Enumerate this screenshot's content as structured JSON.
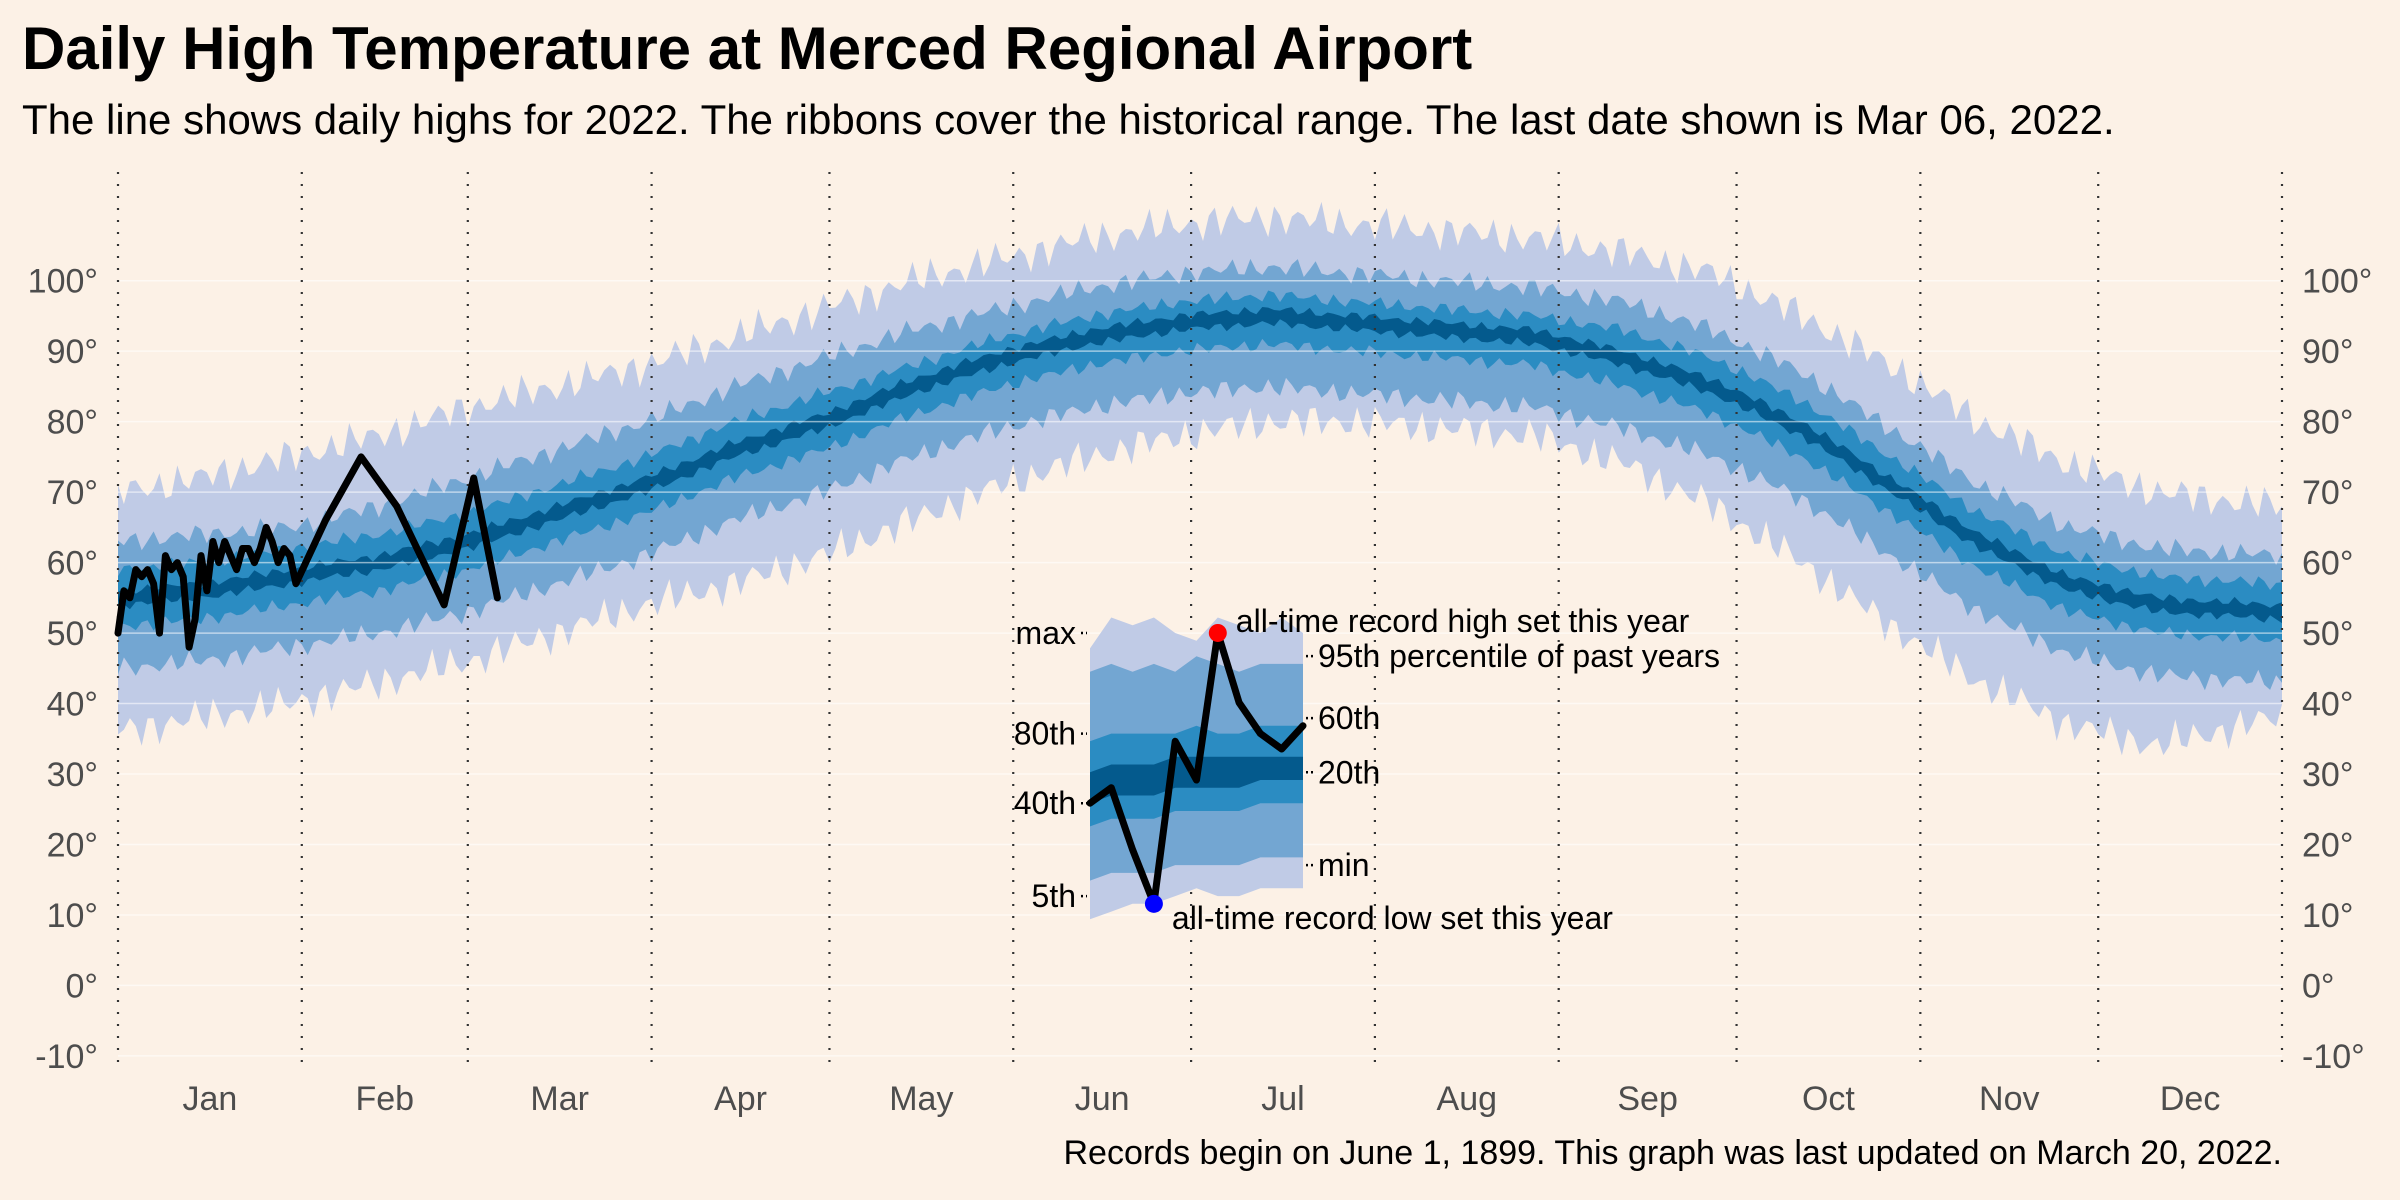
{
  "title": "Daily High Temperature at Merced Regional Airport",
  "subtitle": "The line shows daily highs for 2022. The ribbons cover the historical range. The last date shown is Mar 06, 2022.",
  "caption": "Records begin on June 1, 1899. This graph was last updated on March 20, 2022.",
  "colors": {
    "background": "#fcf1e6",
    "band_outer": "#c0cbe6",
    "band_5_95": "#73a6d2",
    "band_20_80": "#2b8cc2",
    "band_40_60": "#045a8d",
    "line": "#000000",
    "record_high": "#ff0000",
    "record_low": "#0000ff",
    "gridline": "#ffffff"
  },
  "chart_data": {
    "type": "area",
    "x_unit": "day of year",
    "y_unit": "°F",
    "ylim": [
      -12,
      115
    ],
    "y_ticks": [
      -10,
      0,
      10,
      20,
      30,
      40,
      50,
      60,
      70,
      80,
      90,
      100
    ],
    "y_tick_labels": [
      "-10°",
      "0°",
      "10°",
      "20°",
      "30°",
      "40°",
      "50°",
      "60°",
      "70°",
      "80°",
      "90°",
      "100°"
    ],
    "x_tick_labels": [
      "Jan",
      "Feb",
      "Mar",
      "Apr",
      "May",
      "Jun",
      "Jul",
      "Aug",
      "Sep",
      "Oct",
      "Nov",
      "Dec"
    ],
    "month_start_days": [
      1,
      32,
      60,
      91,
      121,
      152,
      182,
      213,
      244,
      274,
      305,
      335,
      366
    ],
    "grid": true,
    "climatology": {
      "day": [
        1,
        15,
        30,
        45,
        60,
        75,
        90,
        105,
        120,
        135,
        150,
        165,
        180,
        195,
        210,
        225,
        240,
        255,
        270,
        285,
        300,
        315,
        330,
        345,
        365
      ],
      "max": [
        70,
        72,
        75,
        78,
        82,
        85,
        88,
        92,
        96,
        100,
        103,
        106,
        108,
        109,
        108,
        107,
        106,
        104,
        101,
        95,
        88,
        80,
        74,
        70,
        68
      ],
      "p95": [
        63,
        64,
        65,
        68,
        72,
        76,
        80,
        85,
        89,
        93,
        96,
        99,
        101,
        102,
        101,
        100,
        99,
        97,
        93,
        87,
        79,
        71,
        65,
        62,
        61
      ],
      "p80": [
        59,
        60,
        62,
        64,
        67,
        71,
        75,
        80,
        84,
        88,
        92,
        95,
        97,
        98,
        97,
        96,
        95,
        93,
        89,
        83,
        75,
        67,
        61,
        58,
        57
      ],
      "p60": [
        56,
        57,
        59,
        61,
        64,
        68,
        72,
        77,
        81,
        86,
        90,
        93,
        95,
        96,
        95,
        94,
        93,
        90,
        86,
        80,
        72,
        64,
        58,
        55,
        54
      ],
      "p40": [
        54,
        55,
        57,
        59,
        62,
        66,
        70,
        75,
        79,
        84,
        88,
        91,
        93,
        94,
        93,
        92,
        91,
        88,
        84,
        78,
        70,
        62,
        56,
        53,
        52
      ],
      "p20": [
        51,
        52,
        54,
        56,
        59,
        63,
        67,
        72,
        76,
        81,
        85,
        88,
        90,
        91,
        90,
        89,
        88,
        85,
        81,
        75,
        67,
        59,
        53,
        50,
        49
      ],
      "p5": [
        45,
        46,
        48,
        50,
        53,
        57,
        61,
        66,
        70,
        75,
        79,
        82,
        84,
        85,
        84,
        83,
        82,
        79,
        75,
        69,
        61,
        53,
        47,
        44,
        43
      ],
      "min": [
        36,
        38,
        40,
        43,
        46,
        50,
        54,
        57,
        61,
        66,
        71,
        75,
        78,
        80,
        80,
        79,
        78,
        74,
        68,
        60,
        51,
        43,
        37,
        34,
        38
      ]
    },
    "series": [
      {
        "name": "2022",
        "x": [
          1,
          2,
          3,
          4,
          5,
          6,
          7,
          8,
          9,
          10,
          11,
          12,
          13,
          14,
          15,
          16,
          17,
          18,
          19,
          20,
          21,
          22,
          23,
          24,
          25,
          26,
          27,
          28,
          29,
          30,
          31,
          36,
          42,
          48,
          56,
          61,
          65
        ],
        "y": [
          50,
          56,
          55,
          59,
          58,
          59,
          57,
          50,
          61,
          59,
          60,
          58,
          48,
          52,
          61,
          56,
          63,
          60,
          63,
          61,
          59,
          62,
          62,
          60,
          62,
          65,
          63,
          60,
          62,
          61,
          57,
          66,
          75,
          68,
          54,
          72,
          55
        ]
      }
    ],
    "legend": {
      "labels_left": [
        {
          "text": "max",
          "value": 110
        },
        {
          "text": "80th",
          "value": 97
        },
        {
          "text": "40th",
          "value": 88
        },
        {
          "text": "5th",
          "value": 76
        }
      ],
      "labels_right": [
        {
          "text": "95th percentile of past years",
          "value": 107
        },
        {
          "text": "60th",
          "value": 99
        },
        {
          "text": "20th",
          "value": 92
        },
        {
          "text": "min",
          "value": 80
        }
      ],
      "record_high_label": "all-time record high set this year",
      "record_low_label": "all-time record low set this year",
      "clim": {
        "day": [
          1,
          2,
          3,
          4,
          5,
          6,
          7,
          8,
          9,
          10,
          11
        ],
        "max": [
          108,
          112,
          111,
          112,
          110,
          109,
          112,
          111,
          110,
          112,
          110
        ],
        "p95": [
          105,
          106,
          105,
          106,
          105,
          107,
          106,
          105,
          106,
          106,
          106
        ],
        "p80": [
          96,
          97,
          97,
          97,
          97,
          98,
          97,
          97,
          98,
          98,
          98
        ],
        "p60": [
          92,
          93,
          93,
          93,
          94,
          94,
          94,
          94,
          94,
          94,
          94
        ],
        "p40": [
          88,
          89,
          89,
          89,
          90,
          90,
          90,
          90,
          91,
          91,
          91
        ],
        "p20": [
          85,
          86,
          86,
          86,
          87,
          87,
          87,
          87,
          88,
          88,
          88
        ],
        "p5": [
          78,
          79,
          79,
          79,
          80,
          80,
          80,
          80,
          81,
          81,
          81
        ],
        "min": [
          73,
          74,
          75,
          75,
          76,
          77,
          76,
          76,
          77,
          77,
          77
        ]
      },
      "line": {
        "day": [
          1,
          2,
          3,
          4,
          5,
          6,
          7,
          8,
          9,
          10,
          11
        ],
        "y": [
          88,
          90,
          82,
          75,
          96,
          91,
          110,
          101,
          97,
          95,
          98
        ]
      },
      "record_high_day": 7,
      "record_low_day": 4
    }
  }
}
